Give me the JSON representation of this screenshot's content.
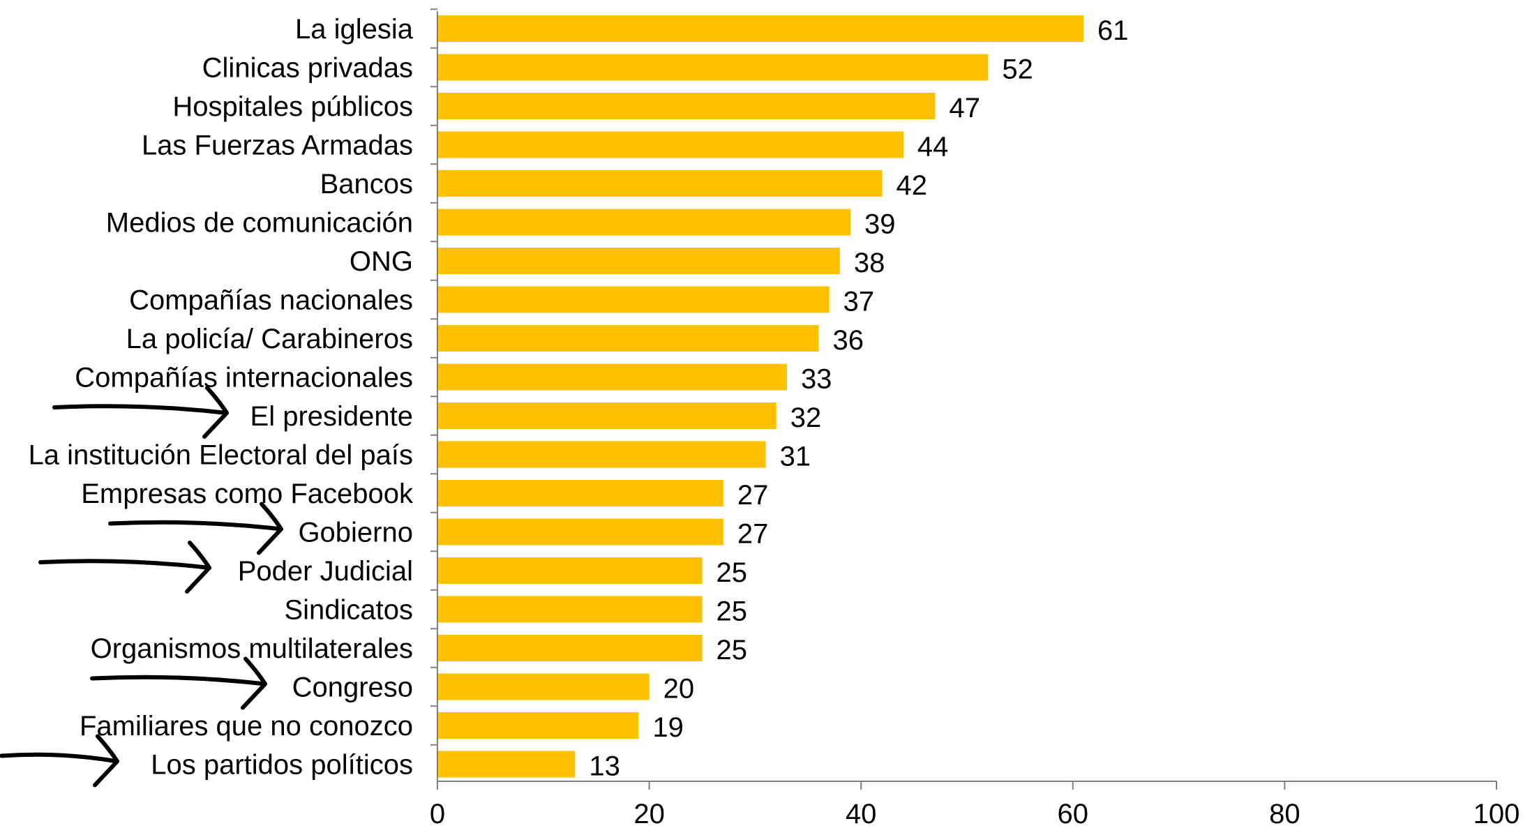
{
  "chart_data": {
    "type": "bar",
    "orientation": "horizontal",
    "categories": [
      "La iglesia",
      "Clinicas privadas",
      "Hospitales públicos",
      "Las Fuerzas Armadas",
      "Bancos",
      "Medios de comunicación",
      "ONG",
      "Compañías nacionales",
      "La policía/ Carabineros",
      "Compañías internacionales",
      "El presidente",
      "La institución Electoral del país",
      "Empresas como Facebook",
      "Gobierno",
      "Poder Judicial",
      "Sindicatos",
      "Organismos multilaterales",
      "Congreso",
      "Familiares que no conozco",
      "Los partidos políticos"
    ],
    "values": [
      61,
      52,
      47,
      44,
      42,
      39,
      38,
      37,
      36,
      33,
      32,
      31,
      27,
      27,
      25,
      25,
      25,
      20,
      19,
      13
    ],
    "xlim": [
      0,
      100
    ],
    "xticks": [
      0,
      20,
      40,
      60,
      80,
      100
    ],
    "bar_color": "#FFC000",
    "data_labels": true,
    "grid": false,
    "legend": "none",
    "annotations": {
      "arrows_pointing_to": [
        "El presidente",
        "Gobierno",
        "Poder Judicial",
        "Congreso",
        "Los partidos políticos"
      ],
      "style": "hand-drawn black arrow"
    }
  }
}
